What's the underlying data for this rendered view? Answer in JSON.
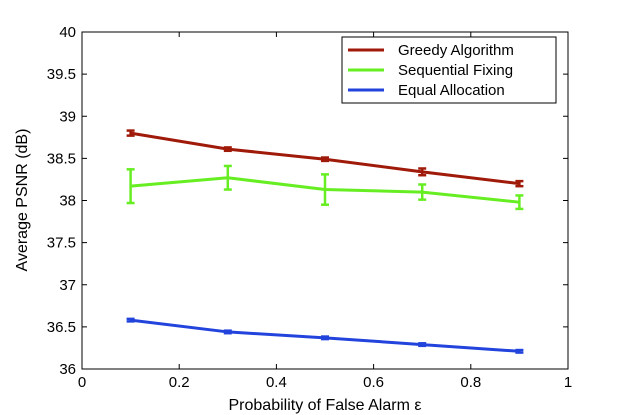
{
  "chart_data": {
    "type": "line",
    "title": "",
    "xlabel": "Probability of False Alarm ε",
    "ylabel": "Average PSNR (dB)",
    "xlim": [
      0,
      1
    ],
    "ylim": [
      36,
      40
    ],
    "xticks": [
      0,
      0.2,
      0.4,
      0.6,
      0.8,
      1
    ],
    "xtick_labels": [
      "0",
      "0.2",
      "0.4",
      "0.6",
      "0.8",
      "1"
    ],
    "yticks": [
      36,
      36.5,
      37,
      37.5,
      38,
      38.5,
      39,
      39.5,
      40
    ],
    "ytick_labels": [
      "36",
      "36.5",
      "37",
      "37.5",
      "38",
      "38.5",
      "39",
      "39.5",
      "40"
    ],
    "grid": false,
    "legend_position": "top-right",
    "x": [
      0.1,
      0.3,
      0.5,
      0.7,
      0.9
    ],
    "series": [
      {
        "name": "Greedy Algorithm",
        "color": "#a01a0a",
        "values": [
          38.8,
          38.61,
          38.49,
          38.34,
          38.2
        ],
        "error": [
          0.03,
          0.02,
          0.02,
          0.04,
          0.03
        ]
      },
      {
        "name": "Sequential Fixing",
        "color": "#66ee22",
        "values": [
          38.17,
          38.27,
          38.13,
          38.1,
          37.98
        ],
        "error": [
          0.2,
          0.14,
          0.18,
          0.09,
          0.08
        ]
      },
      {
        "name": "Equal Allocation",
        "color": "#2244dd",
        "values": [
          36.58,
          36.44,
          36.37,
          36.29,
          36.21
        ],
        "error": [
          0.015,
          0.015,
          0.015,
          0.015,
          0.015
        ]
      }
    ]
  }
}
